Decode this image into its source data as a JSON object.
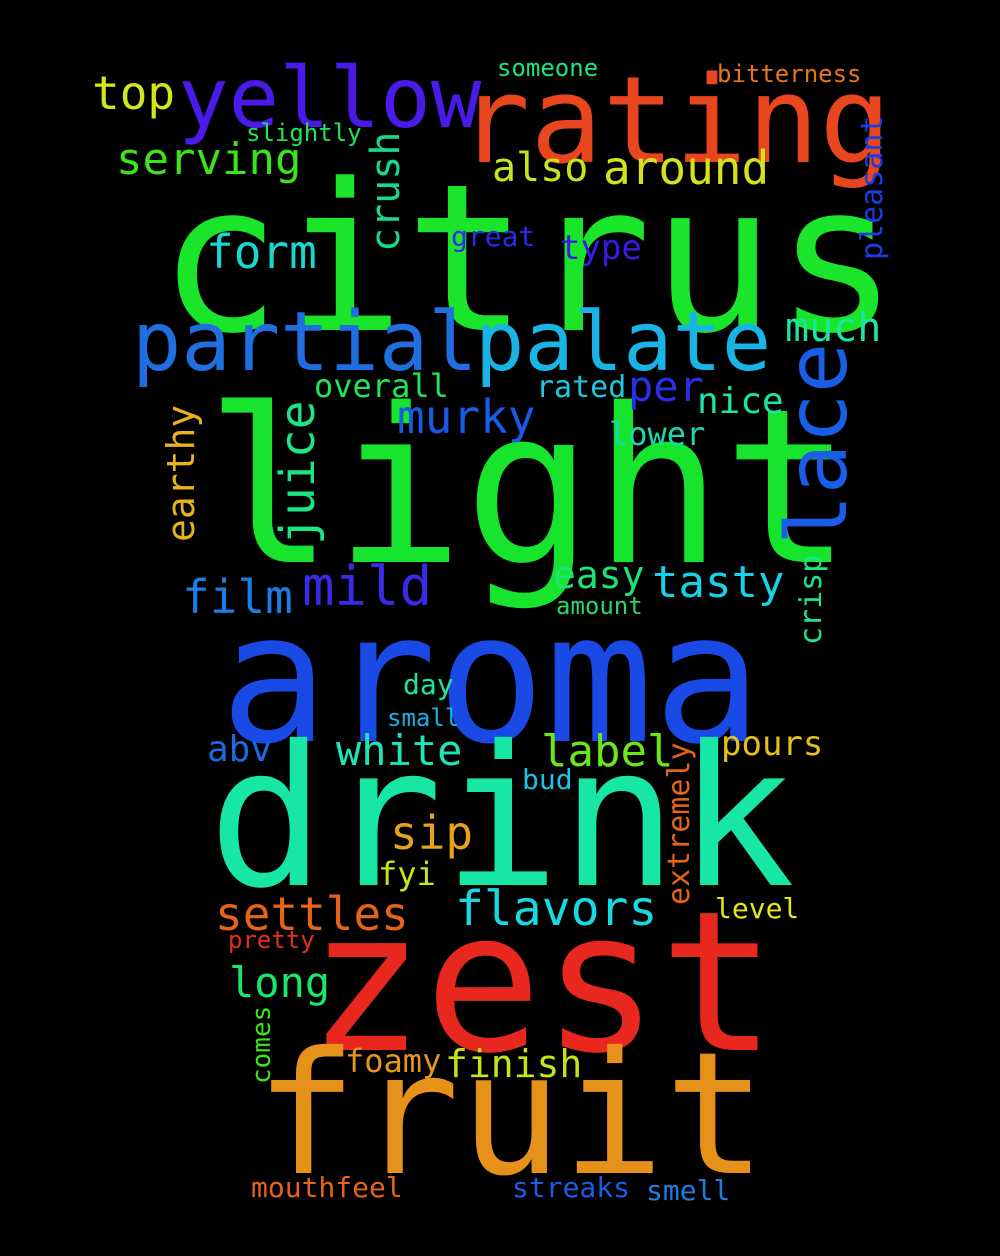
{
  "colors": {
    "background": "#000000"
  },
  "words": [
    {
      "text": "citrus",
      "color": "#1ae52a"
    },
    {
      "text": "light",
      "color": "#17e42d"
    },
    {
      "text": "aroma",
      "color": "#1a4ae6"
    },
    {
      "text": "drink",
      "color": "#18e6a5"
    },
    {
      "text": "zest",
      "color": "#e8281e"
    },
    {
      "text": "fruit",
      "color": "#e5911a"
    },
    {
      "text": "rating",
      "color": "#e8461f"
    },
    {
      "text": "yellow",
      "color": "#4a1ae8"
    },
    {
      "text": "partial",
      "color": "#1f6fe0"
    },
    {
      "text": "palate",
      "color": "#1ab3e6"
    },
    {
      "text": "lace",
      "color": "#1a5ee8"
    },
    {
      "text": "top",
      "color": "#d2e61a"
    },
    {
      "text": "serving",
      "color": "#3ae61a"
    },
    {
      "text": "crush",
      "color": "#18d98a"
    },
    {
      "text": "around",
      "color": "#d4e21e"
    },
    {
      "text": "also",
      "color": "#c4e61a"
    },
    {
      "text": "form",
      "color": "#1ad6d0"
    },
    {
      "text": "great",
      "color": "#2a2ae8"
    },
    {
      "text": "type",
      "color": "#3a1ae8"
    },
    {
      "text": "pleasant",
      "color": "#1a3ee6"
    },
    {
      "text": "much",
      "color": "#1ae6a0"
    },
    {
      "text": "overall",
      "color": "#22e45c"
    },
    {
      "text": "rated",
      "color": "#1ac8e0"
    },
    {
      "text": "per",
      "color": "#2a2ee8"
    },
    {
      "text": "nice",
      "color": "#1ae6a8"
    },
    {
      "text": "murky",
      "color": "#1a5ae6"
    },
    {
      "text": "lower",
      "color": "#1ad8b0"
    },
    {
      "text": "earthy",
      "color": "#e6b41a"
    },
    {
      "text": "juice",
      "color": "#1ae688"
    },
    {
      "text": "mild",
      "color": "#3a2ae8"
    },
    {
      "text": "easy",
      "color": "#1ae678"
    },
    {
      "text": "tasty",
      "color": "#1ad0e6"
    },
    {
      "text": "film",
      "color": "#1a7ee6"
    },
    {
      "text": "crisp",
      "color": "#1ae68c"
    },
    {
      "text": "amount",
      "color": "#2ad66a"
    },
    {
      "text": "someone",
      "color": "#1ae67a"
    },
    {
      "text": "bitterness",
      "color": "#e6781a"
    },
    {
      "text": "slightly",
      "color": "#1ae65c"
    },
    {
      "text": "day",
      "color": "#1ae6a0"
    },
    {
      "text": "small",
      "color": "#1ab0e6"
    },
    {
      "text": "abv",
      "color": "#1a6ae6"
    },
    {
      "text": "white",
      "color": "#1ae6b8"
    },
    {
      "text": "label",
      "color": "#6ae61a"
    },
    {
      "text": "pours",
      "color": "#e6c01a"
    },
    {
      "text": "bud",
      "color": "#1ac4e6"
    },
    {
      "text": "extremely",
      "color": "#e6641a"
    },
    {
      "text": "sip",
      "color": "#e6a21a"
    },
    {
      "text": "fyi",
      "color": "#c8e61a"
    },
    {
      "text": "flavors",
      "color": "#1ad8e0"
    },
    {
      "text": "settles",
      "color": "#e6641a"
    },
    {
      "text": "level",
      "color": "#e6e61a"
    },
    {
      "text": "pretty",
      "color": "#e6301a"
    },
    {
      "text": "long",
      "color": "#1ae66a"
    },
    {
      "text": "comes",
      "color": "#3ae61a"
    },
    {
      "text": "foamy",
      "color": "#e6961a"
    },
    {
      "text": "finish",
      "color": "#c0e61a"
    },
    {
      "text": "mouthfeel",
      "color": "#e6641a"
    },
    {
      "text": "streaks",
      "color": "#1a5ee6"
    },
    {
      "text": "smell",
      "color": "#1a7ee6"
    }
  ]
}
